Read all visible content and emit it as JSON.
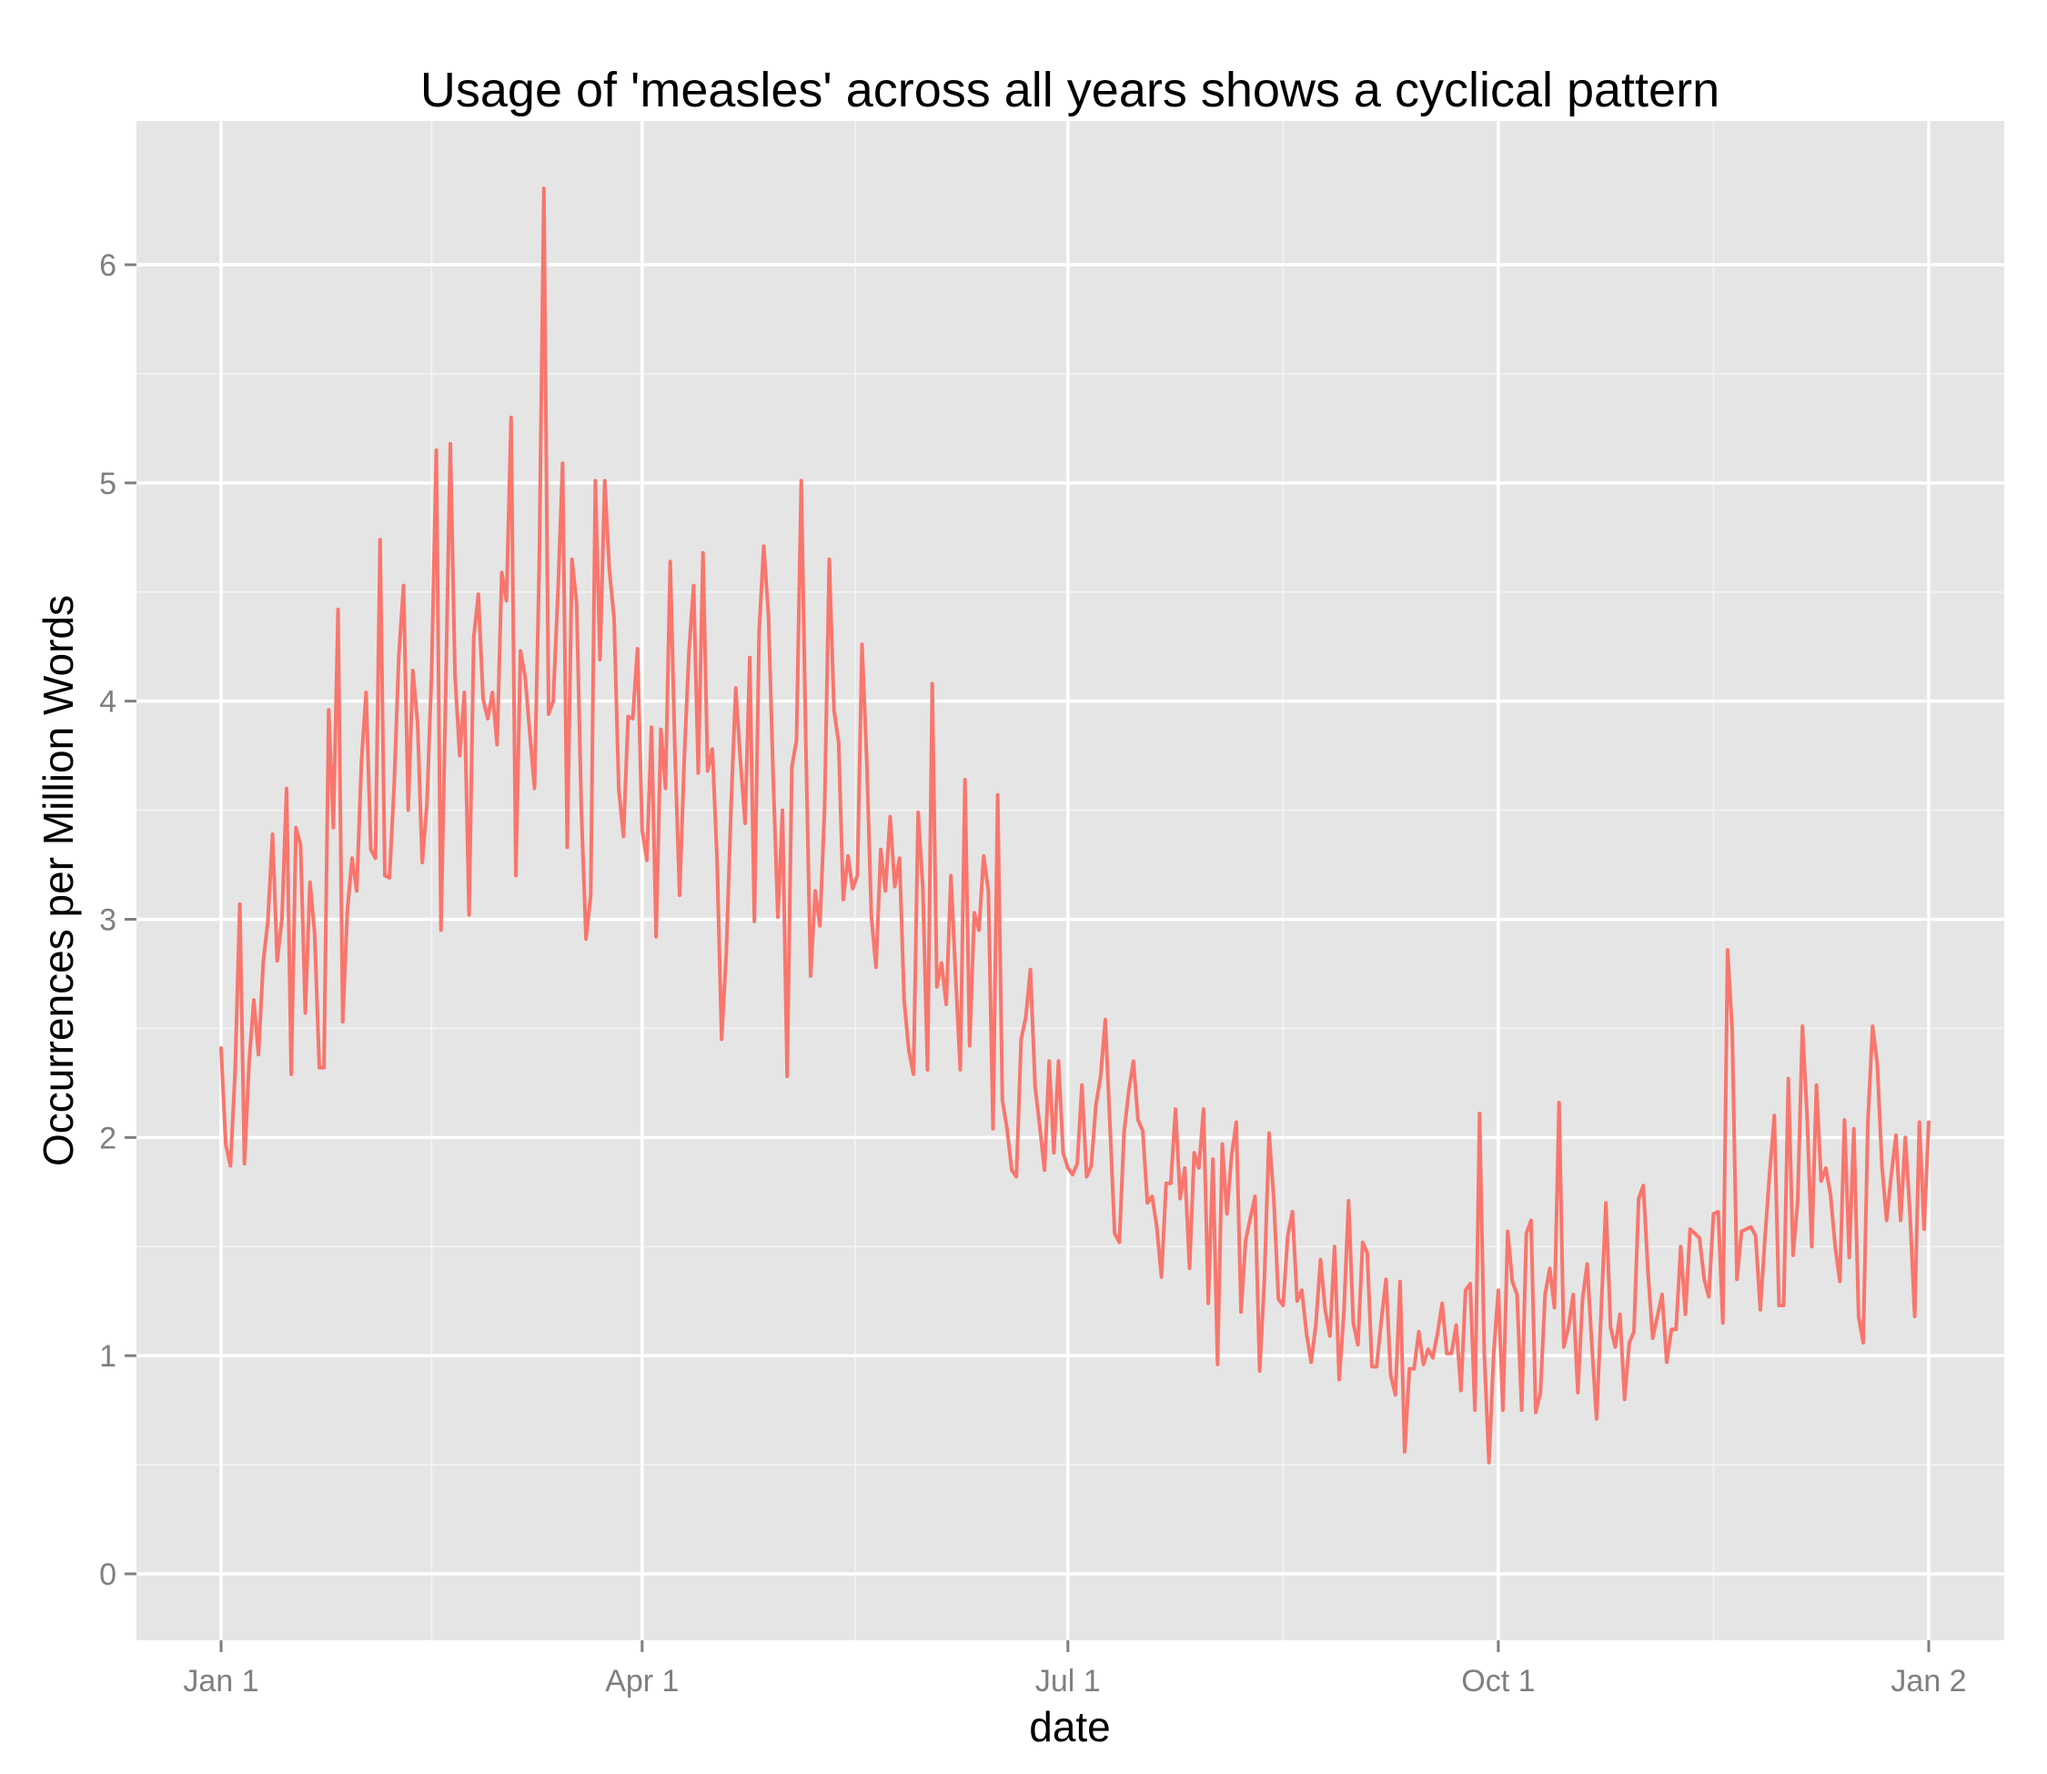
{
  "chart_data": {
    "type": "line",
    "title": "Usage of 'measles' across all years shows a cyclical pattern",
    "xlabel": "date",
    "ylabel": "Occurrences per Million Words",
    "x_tick_labels": [
      "Jan 1",
      "Apr 1",
      "Jul 1",
      "Oct 1",
      "Jan 2"
    ],
    "x_tick_days": [
      1,
      91,
      182,
      274,
      366
    ],
    "xlim": [
      "Dec 14",
      "Jan 19"
    ],
    "y_tick_labels": [
      "0",
      "1",
      "2",
      "3",
      "4",
      "5",
      "6"
    ],
    "y_ticks": [
      0,
      1,
      2,
      3,
      4,
      5,
      6
    ],
    "ylim": [
      -0.3,
      6.6
    ],
    "grid": true,
    "background": "#e5e5e5",
    "line_color": "#f8766d",
    "series": [
      {
        "values": [
          2.41,
          1.97,
          1.87,
          2.3,
          3.07,
          1.88,
          2.35,
          2.63,
          2.38,
          2.8,
          2.99,
          3.39,
          2.81,
          3.0,
          3.6,
          2.29,
          3.42,
          3.34,
          2.57,
          3.17,
          2.94,
          2.32,
          2.32,
          3.96,
          3.42,
          4.42,
          2.53,
          3.04,
          3.28,
          3.13,
          3.72,
          4.04,
          3.32,
          3.28,
          4.74,
          3.2,
          3.19,
          3.62,
          4.21,
          4.53,
          3.5,
          4.14,
          3.9,
          3.26,
          3.53,
          4.13,
          5.15,
          2.95,
          4.02,
          5.18,
          4.12,
          3.75,
          4.04,
          3.02,
          4.29,
          4.49,
          4.01,
          3.92,
          4.04,
          3.8,
          4.59,
          4.46,
          5.3,
          3.2,
          4.23,
          4.11,
          3.85,
          3.6,
          4.62,
          6.35,
          3.94,
          4.0,
          4.5,
          5.09,
          3.33,
          4.65,
          4.45,
          3.5,
          2.91,
          3.11,
          5.01,
          4.19,
          5.01,
          4.6,
          4.38,
          3.6,
          3.38,
          3.93,
          3.92,
          4.24,
          3.41,
          3.27,
          3.88,
          2.92,
          3.87,
          3.6,
          4.64,
          3.78,
          3.11,
          3.73,
          4.22,
          4.53,
          3.67,
          4.68,
          3.68,
          3.78,
          3.28,
          2.45,
          2.85,
          3.51,
          4.06,
          3.73,
          3.44,
          4.2,
          2.99,
          4.32,
          4.71,
          4.39,
          3.66,
          3.01,
          3.5,
          2.28,
          3.7,
          3.82,
          5.01,
          3.8,
          2.74,
          3.13,
          2.97,
          3.51,
          4.65,
          3.96,
          3.81,
          3.09,
          3.29,
          3.14,
          3.2,
          4.26,
          3.73,
          3.01,
          2.78,
          3.32,
          3.13,
          3.47,
          3.15,
          3.28,
          2.63,
          2.4,
          2.29,
          3.49,
          3.14,
          2.31,
          4.08,
          2.69,
          2.8,
          2.61,
          3.2,
          2.74,
          2.31,
          3.64,
          2.42,
          3.03,
          2.95,
          3.29,
          3.13,
          2.04,
          3.57,
          2.17,
          2.04,
          1.85,
          1.82,
          2.45,
          2.55,
          2.77,
          2.23,
          2.05,
          1.85,
          2.35,
          1.93,
          2.35,
          1.93,
          1.86,
          1.83,
          1.88,
          2.24,
          1.82,
          1.87,
          2.15,
          2.28,
          2.54,
          2.05,
          1.56,
          1.52,
          2.02,
          2.21,
          2.35,
          2.08,
          2.03,
          1.7,
          1.73,
          1.59,
          1.36,
          1.79,
          1.79,
          2.13,
          1.72,
          1.86,
          1.4,
          1.93,
          1.86,
          2.13,
          1.24,
          1.9,
          0.96,
          1.97,
          1.65,
          1.92,
          2.07,
          1.2,
          1.53,
          1.63,
          1.73,
          0.93,
          1.35,
          2.02,
          1.72,
          1.26,
          1.23,
          1.55,
          1.66,
          1.25,
          1.3,
          1.1,
          0.97,
          1.14,
          1.44,
          1.21,
          1.09,
          1.5,
          0.89,
          1.2,
          1.71,
          1.15,
          1.05,
          1.52,
          1.47,
          0.95,
          0.95,
          1.16,
          1.35,
          0.91,
          0.82,
          1.34,
          0.56,
          0.94,
          0.94,
          1.11,
          0.96,
          1.03,
          0.99,
          1.1,
          1.24,
          1.01,
          1.01,
          1.14,
          0.84,
          1.3,
          1.33,
          0.75,
          2.11,
          1.01,
          0.51,
          1.01,
          1.3,
          0.75,
          1.57,
          1.34,
          1.28,
          0.75,
          1.56,
          1.62,
          0.74,
          0.83,
          1.28,
          1.4,
          1.22,
          2.16,
          1.04,
          1.13,
          1.28,
          0.83,
          1.26,
          1.42,
          1.05,
          0.71,
          1.21,
          1.7,
          1.13,
          1.04,
          1.19,
          0.8,
          1.06,
          1.11,
          1.72,
          1.78,
          1.38,
          1.08,
          1.18,
          1.28,
          0.97,
          1.12,
          1.12,
          1.5,
          1.19,
          1.58,
          1.56,
          1.54,
          1.35,
          1.27,
          1.65,
          1.66,
          1.15,
          2.86,
          2.49,
          1.35,
          1.57,
          1.58,
          1.59,
          1.55,
          1.21,
          1.54,
          1.84,
          2.1,
          1.23,
          1.23,
          2.27,
          1.46,
          1.71,
          2.51,
          2.1,
          1.5,
          2.24,
          1.8,
          1.86,
          1.74,
          1.5,
          1.34,
          2.08,
          1.45,
          2.04,
          1.18,
          1.06,
          2.07,
          2.51,
          2.34,
          1.87,
          1.62,
          1.83,
          2.01,
          1.62,
          2.0,
          1.65,
          1.18,
          2.07,
          1.58,
          2.07
        ]
      }
    ]
  }
}
